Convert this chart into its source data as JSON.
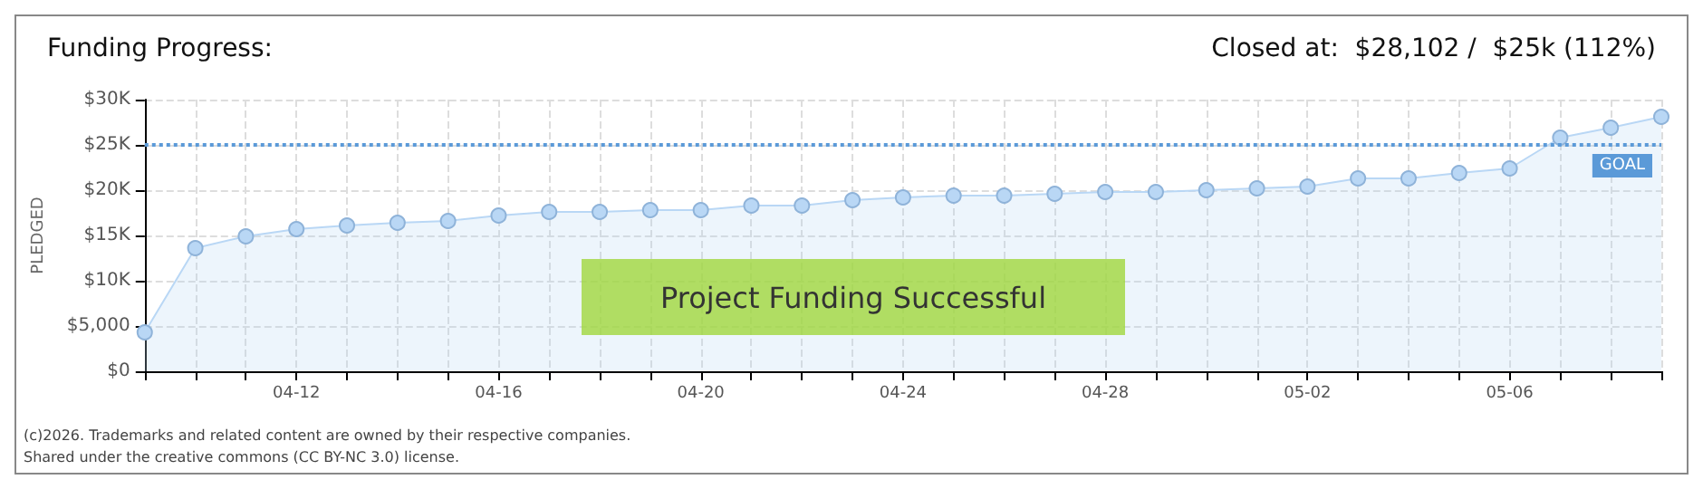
{
  "chart_data": {
    "type": "area",
    "title": "Funding Progress:",
    "subtitle": "Closed at:  $28,102 /  $25k (112%)",
    "ylabel": "PLEDGED",
    "categories": [
      null,
      null,
      null,
      "04-12",
      null,
      null,
      null,
      "04-16",
      null,
      null,
      null,
      "04-20",
      null,
      null,
      null,
      "04-24",
      null,
      null,
      null,
      "04-28",
      null,
      null,
      null,
      "05-02",
      null,
      null,
      null,
      "05-06",
      null,
      null,
      null
    ],
    "series": [
      {
        "color": "#b9d7f5",
        "values": [
          4300,
          13600,
          14900,
          15700,
          16100,
          16400,
          16600,
          17200,
          17600,
          17600,
          17800,
          17800,
          18300,
          18300,
          18900,
          19200,
          19400,
          19400,
          19600,
          19800,
          19800,
          20000,
          20200,
          20400,
          21300,
          21300,
          21900,
          22400,
          25800,
          26900,
          28102
        ]
      }
    ],
    "ylim": [
      0,
      30000
    ],
    "yticks": [
      {
        "value": 0,
        "label": "$0"
      },
      {
        "value": 5000,
        "label": "$5,000"
      },
      {
        "value": 10000,
        "label": "$10K"
      },
      {
        "value": 15000,
        "label": "$15K"
      },
      {
        "value": 20000,
        "label": "$20K"
      },
      {
        "value": 25000,
        "label": "$25K"
      },
      {
        "value": 30000,
        "label": "$30K"
      }
    ],
    "ref_lines": [
      {
        "axis": "y",
        "value": 25000,
        "label": "GOAL",
        "color": "#5b9ad8",
        "line_style": "dotted"
      }
    ],
    "annotations": [
      "Project Funding Successful",
      "(c)2026. Trademarks and related content are owned by their respective companies.",
      "Shared under the creative commons (CC BY-NC 3.0) license."
    ],
    "grid": true,
    "marker": "circle",
    "line_style": "solid"
  }
}
